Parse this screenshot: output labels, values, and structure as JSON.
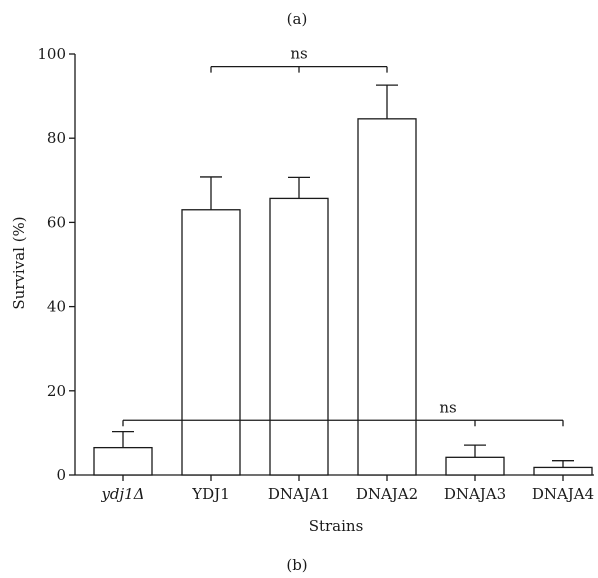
{
  "panel_top_label": "(a)",
  "panel_bottom_label": "(b)",
  "chart_data": {
    "type": "bar",
    "title": "",
    "xlabel": "Strains",
    "ylabel": "Survival (%)",
    "ylim": [
      0,
      100
    ],
    "yticks": [
      0,
      20,
      40,
      60,
      80,
      100
    ],
    "categories": [
      "ydj1Δ",
      "YDJ1",
      "DNAJA1",
      "DNAJA2",
      "DNAJA3",
      "DNAJA4"
    ],
    "italic_categories": [
      "ydj1Δ"
    ],
    "values": [
      6.5,
      63,
      65.7,
      84.6,
      4.2,
      1.8
    ],
    "errors": [
      3.8,
      7.8,
      5.0,
      8.0,
      2.9,
      1.6
    ],
    "bar_fill": "#ffffff",
    "bar_stroke": "#1a1a1a",
    "grid": false,
    "legend": "none",
    "annotations": [
      {
        "text": "ns",
        "from": "YDJ1",
        "to": "DNAJA2",
        "y": 97,
        "ticks": [
          "YDJ1",
          "DNAJA1",
          "DNAJA2"
        ]
      },
      {
        "text": "ns",
        "from": "ydj1Δ",
        "to": "DNAJA4",
        "y": 13,
        "ticks": [
          "ydj1Δ",
          "DNAJA3",
          "DNAJA4"
        ]
      }
    ]
  }
}
